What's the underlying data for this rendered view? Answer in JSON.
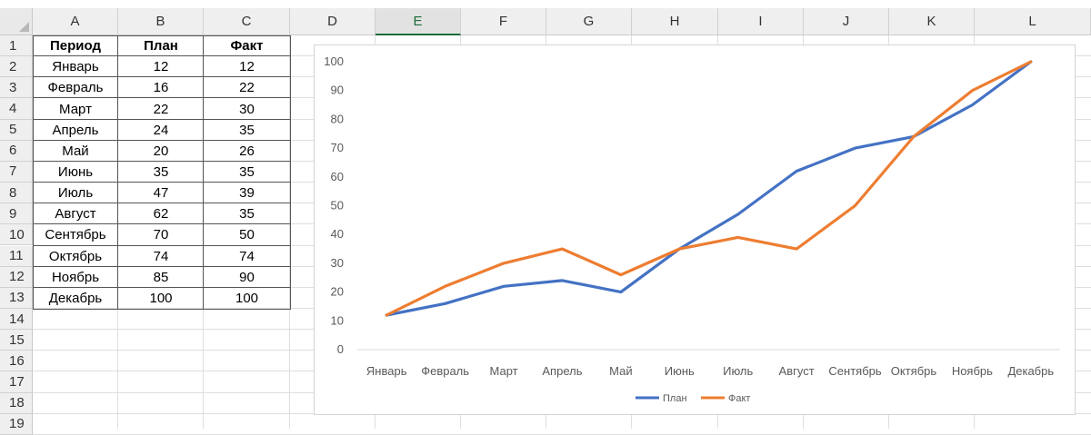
{
  "spreadsheet": {
    "columns": [
      "A",
      "B",
      "C",
      "D",
      "E",
      "F",
      "G",
      "H",
      "I",
      "J",
      "K",
      "L"
    ],
    "active_column": "E",
    "rows": [
      "1",
      "2",
      "3",
      "4",
      "5",
      "6",
      "7",
      "8",
      "9",
      "10",
      "11",
      "12",
      "13",
      "14",
      "15",
      "16",
      "17",
      "18",
      "19"
    ],
    "table": {
      "headers": [
        "Период",
        "План",
        "Факт"
      ],
      "data": [
        [
          "Январь",
          "12",
          "12"
        ],
        [
          "Февраль",
          "16",
          "22"
        ],
        [
          "Март",
          "22",
          "30"
        ],
        [
          "Апрель",
          "24",
          "35"
        ],
        [
          "Май",
          "20",
          "26"
        ],
        [
          "Июнь",
          "35",
          "35"
        ],
        [
          "Июль",
          "47",
          "39"
        ],
        [
          "Август",
          "62",
          "35"
        ],
        [
          "Сентябрь",
          "70",
          "50"
        ],
        [
          "Октябрь",
          "74",
          "74"
        ],
        [
          "Ноябрь",
          "85",
          "90"
        ],
        [
          "Декабрь",
          "100",
          "100"
        ]
      ]
    }
  },
  "chart_data": {
    "type": "line",
    "categories": [
      "Январь",
      "Февраль",
      "Март",
      "Апрель",
      "Май",
      "Июнь",
      "Июль",
      "Август",
      "Сентябрь",
      "Октябрь",
      "Ноябрь",
      "Декабрь"
    ],
    "series": [
      {
        "name": "План",
        "values": [
          12,
          16,
          22,
          24,
          20,
          35,
          47,
          62,
          70,
          74,
          85,
          100
        ],
        "color": "#4472c4"
      },
      {
        "name": "Факт",
        "values": [
          12,
          22,
          30,
          35,
          26,
          35,
          39,
          35,
          50,
          74,
          90,
          100
        ],
        "color": "#ed7d31"
      }
    ],
    "yticks": [
      "0",
      "10",
      "20",
      "30",
      "40",
      "50",
      "60",
      "70",
      "80",
      "90",
      "100"
    ],
    "ylim": [
      0,
      100
    ],
    "grid": false,
    "legend": "bottom",
    "title": "",
    "xlabel": "",
    "ylabel": ""
  }
}
